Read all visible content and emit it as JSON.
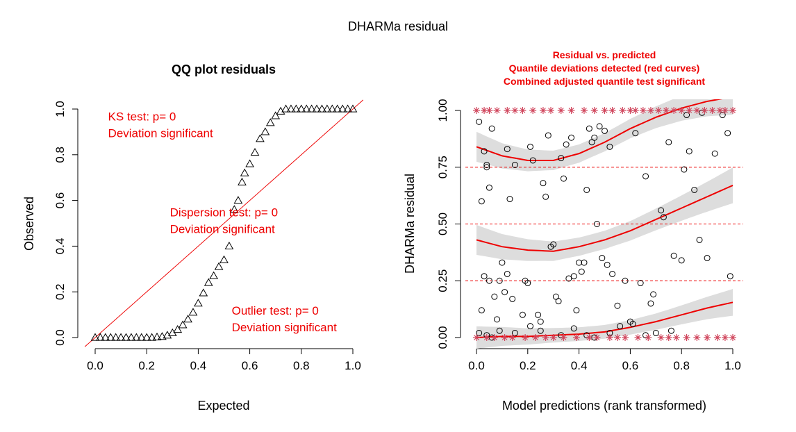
{
  "figure": {
    "main_title": "DHARMa residual"
  },
  "colors": {
    "text": "#000000",
    "red": "#ee0000",
    "outlier_star": "#d0455c",
    "band": "#dddddd",
    "points": "#000000"
  },
  "chart_data": [
    {
      "type": "scatter",
      "title": "QQ plot residuals",
      "xlabel": "Expected",
      "ylabel": "Observed",
      "xlim": [
        0,
        1
      ],
      "ylim": [
        0,
        1
      ],
      "x_ticks": [
        "0.0",
        "0.2",
        "0.4",
        "0.6",
        "0.8",
        "1.0"
      ],
      "y_ticks": [
        "0.0",
        "0.2",
        "0.4",
        "0.6",
        "0.8",
        "1.0"
      ],
      "marker": "triangle",
      "reference_line": {
        "from": [
          0,
          0
        ],
        "to": [
          1,
          1
        ]
      },
      "qq_points": [
        [
          0.0,
          0.0
        ],
        [
          0.02,
          0.0
        ],
        [
          0.04,
          0.0
        ],
        [
          0.06,
          0.0
        ],
        [
          0.08,
          0.0
        ],
        [
          0.1,
          0.0
        ],
        [
          0.12,
          0.0
        ],
        [
          0.14,
          0.0
        ],
        [
          0.16,
          0.0
        ],
        [
          0.18,
          0.0
        ],
        [
          0.2,
          0.0
        ],
        [
          0.22,
          0.0
        ],
        [
          0.24,
          0.002
        ],
        [
          0.26,
          0.004
        ],
        [
          0.28,
          0.01
        ],
        [
          0.3,
          0.02
        ],
        [
          0.32,
          0.035
        ],
        [
          0.34,
          0.055
        ],
        [
          0.36,
          0.08
        ],
        [
          0.38,
          0.11
        ],
        [
          0.4,
          0.15
        ],
        [
          0.42,
          0.195
        ],
        [
          0.44,
          0.24
        ],
        [
          0.46,
          0.27
        ],
        [
          0.48,
          0.31
        ],
        [
          0.5,
          0.34
        ],
        [
          0.52,
          0.4
        ],
        [
          0.54,
          0.56
        ],
        [
          0.555,
          0.6
        ],
        [
          0.57,
          0.68
        ],
        [
          0.58,
          0.72
        ],
        [
          0.6,
          0.76
        ],
        [
          0.62,
          0.81
        ],
        [
          0.64,
          0.87
        ],
        [
          0.66,
          0.9
        ],
        [
          0.68,
          0.94
        ],
        [
          0.7,
          0.97
        ],
        [
          0.72,
          0.99
        ],
        [
          0.74,
          1.0
        ],
        [
          0.76,
          1.0
        ],
        [
          0.78,
          1.0
        ],
        [
          0.8,
          1.0
        ],
        [
          0.82,
          1.0
        ],
        [
          0.84,
          1.0
        ],
        [
          0.86,
          1.0
        ],
        [
          0.88,
          1.0
        ],
        [
          0.9,
          1.0
        ],
        [
          0.92,
          1.0
        ],
        [
          0.94,
          1.0
        ],
        [
          0.96,
          1.0
        ],
        [
          0.98,
          1.0
        ],
        [
          1.0,
          1.0
        ]
      ],
      "annotations": [
        {
          "lines": [
            "KS test: p= 0",
            "Deviation  significant"
          ],
          "at": [
            0.05,
            0.95
          ]
        },
        {
          "lines": [
            "Dispersion test: p= 0",
            "Deviation  significant"
          ],
          "at": [
            0.29,
            0.53
          ]
        },
        {
          "lines": [
            "Outlier test: p= 0",
            "Deviation  significant"
          ],
          "at": [
            0.53,
            0.1
          ]
        }
      ]
    },
    {
      "type": "scatter",
      "title_lines": [
        "Residual vs. predicted",
        "Quantile deviations detected (red curves)",
        "Combined adjusted quantile test significant"
      ],
      "xlabel": "Model predictions (rank transformed)",
      "ylabel": "DHARMa residual",
      "xlim": [
        0,
        1
      ],
      "ylim": [
        0,
        1
      ],
      "x_ticks": [
        "0.0",
        "0.2",
        "0.4",
        "0.6",
        "0.8",
        "1.0"
      ],
      "y_ticks": [
        "0.00",
        "0.25",
        "0.50",
        "0.75",
        "1.00"
      ],
      "reference_lines_y": [
        0.25,
        0.5,
        0.75
      ],
      "quantile_curves": [
        {
          "quantile": 0.75,
          "x": [
            0,
            0.1,
            0.2,
            0.3,
            0.4,
            0.5,
            0.6,
            0.7,
            0.8,
            0.9,
            1.0
          ],
          "y": [
            0.84,
            0.8,
            0.78,
            0.78,
            0.81,
            0.86,
            0.92,
            0.97,
            1.01,
            1.04,
            1.06
          ],
          "band": 0.04
        },
        {
          "quantile": 0.5,
          "x": [
            0,
            0.1,
            0.2,
            0.3,
            0.4,
            0.5,
            0.6,
            0.7,
            0.8,
            0.9,
            1.0
          ],
          "y": [
            0.43,
            0.4,
            0.385,
            0.38,
            0.4,
            0.43,
            0.47,
            0.52,
            0.57,
            0.62,
            0.67
          ],
          "band": 0.04
        },
        {
          "quantile": 0.25,
          "x": [
            0,
            0.1,
            0.2,
            0.3,
            0.4,
            0.5,
            0.6,
            0.7,
            0.8,
            0.9,
            1.0
          ],
          "y": [
            0.0,
            0.005,
            0.005,
            0.01,
            0.015,
            0.025,
            0.045,
            0.07,
            0.1,
            0.13,
            0.155
          ],
          "band": 0.03
        }
      ],
      "residual_points": [
        [
          0.01,
          0.95
        ],
        [
          0.02,
          0.6
        ],
        [
          0.03,
          0.82
        ],
        [
          0.04,
          0.76
        ],
        [
          0.04,
          0.75
        ],
        [
          0.05,
          0.66
        ],
        [
          0.06,
          0.92
        ],
        [
          0.02,
          0.12
        ],
        [
          0.03,
          0.27
        ],
        [
          0.05,
          0.25
        ],
        [
          0.07,
          0.18
        ],
        [
          0.08,
          0.08
        ],
        [
          0.09,
          0.25
        ],
        [
          0.1,
          0.33
        ],
        [
          0.11,
          0.2
        ],
        [
          0.12,
          0.28
        ],
        [
          0.13,
          0.61
        ],
        [
          0.14,
          0.17
        ],
        [
          0.15,
          0.76
        ],
        [
          0.12,
          0.83
        ],
        [
          0.18,
          0.1
        ],
        [
          0.19,
          0.25
        ],
        [
          0.2,
          0.24
        ],
        [
          0.21,
          0.84
        ],
        [
          0.22,
          0.78
        ],
        [
          0.24,
          0.1
        ],
        [
          0.25,
          0.07
        ],
        [
          0.26,
          0.68
        ],
        [
          0.27,
          0.62
        ],
        [
          0.28,
          0.89
        ],
        [
          0.29,
          0.4
        ],
        [
          0.3,
          0.41
        ],
        [
          0.31,
          0.18
        ],
        [
          0.32,
          0.16
        ],
        [
          0.33,
          0.79
        ],
        [
          0.34,
          0.7
        ],
        [
          0.35,
          0.85
        ],
        [
          0.36,
          0.26
        ],
        [
          0.37,
          0.88
        ],
        [
          0.38,
          0.27
        ],
        [
          0.39,
          0.12
        ],
        [
          0.4,
          0.33
        ],
        [
          0.41,
          0.29
        ],
        [
          0.42,
          0.33
        ],
        [
          0.43,
          0.65
        ],
        [
          0.44,
          0.92
        ],
        [
          0.45,
          0.86
        ],
        [
          0.46,
          0.88
        ],
        [
          0.47,
          0.5
        ],
        [
          0.48,
          0.93
        ],
        [
          0.49,
          0.35
        ],
        [
          0.5,
          0.91
        ],
        [
          0.51,
          0.32
        ],
        [
          0.52,
          0.84
        ],
        [
          0.53,
          0.28
        ],
        [
          0.55,
          0.14
        ],
        [
          0.58,
          0.25
        ],
        [
          0.6,
          0.07
        ],
        [
          0.62,
          0.9
        ],
        [
          0.64,
          0.24
        ],
        [
          0.66,
          0.71
        ],
        [
          0.68,
          0.15
        ],
        [
          0.69,
          0.19
        ],
        [
          0.72,
          0.56
        ],
        [
          0.73,
          0.53
        ],
        [
          0.75,
          0.86
        ],
        [
          0.77,
          0.36
        ],
        [
          0.8,
          0.34
        ],
        [
          0.81,
          0.74
        ],
        [
          0.83,
          0.82
        ],
        [
          0.85,
          0.65
        ],
        [
          0.87,
          0.43
        ],
        [
          0.9,
          0.35
        ],
        [
          0.93,
          0.81
        ],
        [
          0.96,
          0.98
        ],
        [
          0.98,
          0.9
        ],
        [
          0.99,
          0.27
        ],
        [
          0.01,
          0.02
        ],
        [
          0.04,
          0.01
        ],
        [
          0.06,
          0.0
        ],
        [
          0.09,
          0.03
        ],
        [
          0.15,
          0.02
        ],
        [
          0.21,
          0.05
        ],
        [
          0.25,
          0.03
        ],
        [
          0.33,
          0.01
        ],
        [
          0.38,
          0.04
        ],
        [
          0.43,
          0.01
        ],
        [
          0.46,
          0.0
        ],
        [
          0.52,
          0.02
        ],
        [
          0.56,
          0.05
        ],
        [
          0.61,
          0.06
        ],
        [
          0.66,
          0.01
        ],
        [
          0.7,
          0.02
        ],
        [
          0.76,
          0.03
        ],
        [
          0.82,
          0.98
        ],
        [
          0.88,
          0.99
        ]
      ],
      "outlier_x": [
        0.0,
        0.03,
        0.05,
        0.08,
        0.12,
        0.15,
        0.18,
        0.22,
        0.26,
        0.29,
        0.33,
        0.37,
        0.42,
        0.46,
        0.5,
        0.53,
        0.57,
        0.6,
        0.62,
        0.65,
        0.68,
        0.71,
        0.74,
        0.77,
        0.8,
        0.83,
        0.86,
        0.89,
        0.92,
        0.95,
        0.97,
        1.0
      ],
      "outlier_x_low": [
        0.0,
        0.04,
        0.07,
        0.11,
        0.14,
        0.19,
        0.23,
        0.27,
        0.3,
        0.34,
        0.39,
        0.44,
        0.47,
        0.52,
        0.55,
        0.58,
        0.63,
        0.67,
        0.72,
        0.75,
        0.78,
        0.82,
        0.86,
        0.9,
        0.94,
        0.97,
        1.0
      ]
    }
  ]
}
